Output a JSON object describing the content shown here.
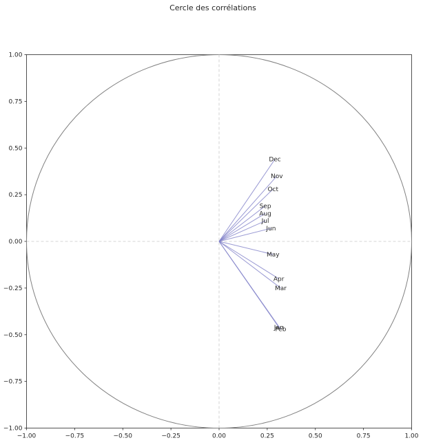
{
  "chart_data": {
    "type": "scatter",
    "title": "Cercle des corrélations",
    "xlabel": "",
    "ylabel": "",
    "xlim": [
      -1.0,
      1.0
    ],
    "ylim": [
      -1.0,
      1.0
    ],
    "xticks": [
      "−1.00",
      "−0.75",
      "−0.50",
      "−0.25",
      "0.00",
      "0.25",
      "0.50",
      "0.75",
      "1.00"
    ],
    "xtick_values": [
      -1.0,
      -0.75,
      -0.5,
      -0.25,
      0.0,
      0.25,
      0.5,
      0.75,
      1.0
    ],
    "yticks": [
      "−1.00",
      "−0.75",
      "−0.50",
      "−0.25",
      "0.00",
      "0.25",
      "0.50",
      "0.75",
      "1.00"
    ],
    "ytick_values": [
      -1.0,
      -0.75,
      -0.5,
      -0.25,
      0.0,
      0.25,
      0.5,
      0.75,
      1.0
    ],
    "grid": false,
    "reference_lines": {
      "x": 0.0,
      "y": 0.0,
      "style": "dashed"
    },
    "unit_circle": true,
    "arrow_color": "#8080c8",
    "circle_color": "#808080",
    "vectors": [
      {
        "name": "Jan",
        "x": 0.31,
        "y": -0.46
      },
      {
        "name": "Feb",
        "x": 0.32,
        "y": -0.47
      },
      {
        "name": "Mar",
        "x": 0.32,
        "y": -0.25
      },
      {
        "name": "Apr",
        "x": 0.31,
        "y": -0.2
      },
      {
        "name": "May",
        "x": 0.28,
        "y": -0.07
      },
      {
        "name": "Jun",
        "x": 0.27,
        "y": 0.07
      },
      {
        "name": "Jul",
        "x": 0.24,
        "y": 0.11
      },
      {
        "name": "Aug",
        "x": 0.24,
        "y": 0.15
      },
      {
        "name": "Sep",
        "x": 0.24,
        "y": 0.19
      },
      {
        "name": "Oct",
        "x": 0.28,
        "y": 0.28
      },
      {
        "name": "Nov",
        "x": 0.3,
        "y": 0.35
      },
      {
        "name": "Dec",
        "x": 0.29,
        "y": 0.44
      }
    ]
  }
}
